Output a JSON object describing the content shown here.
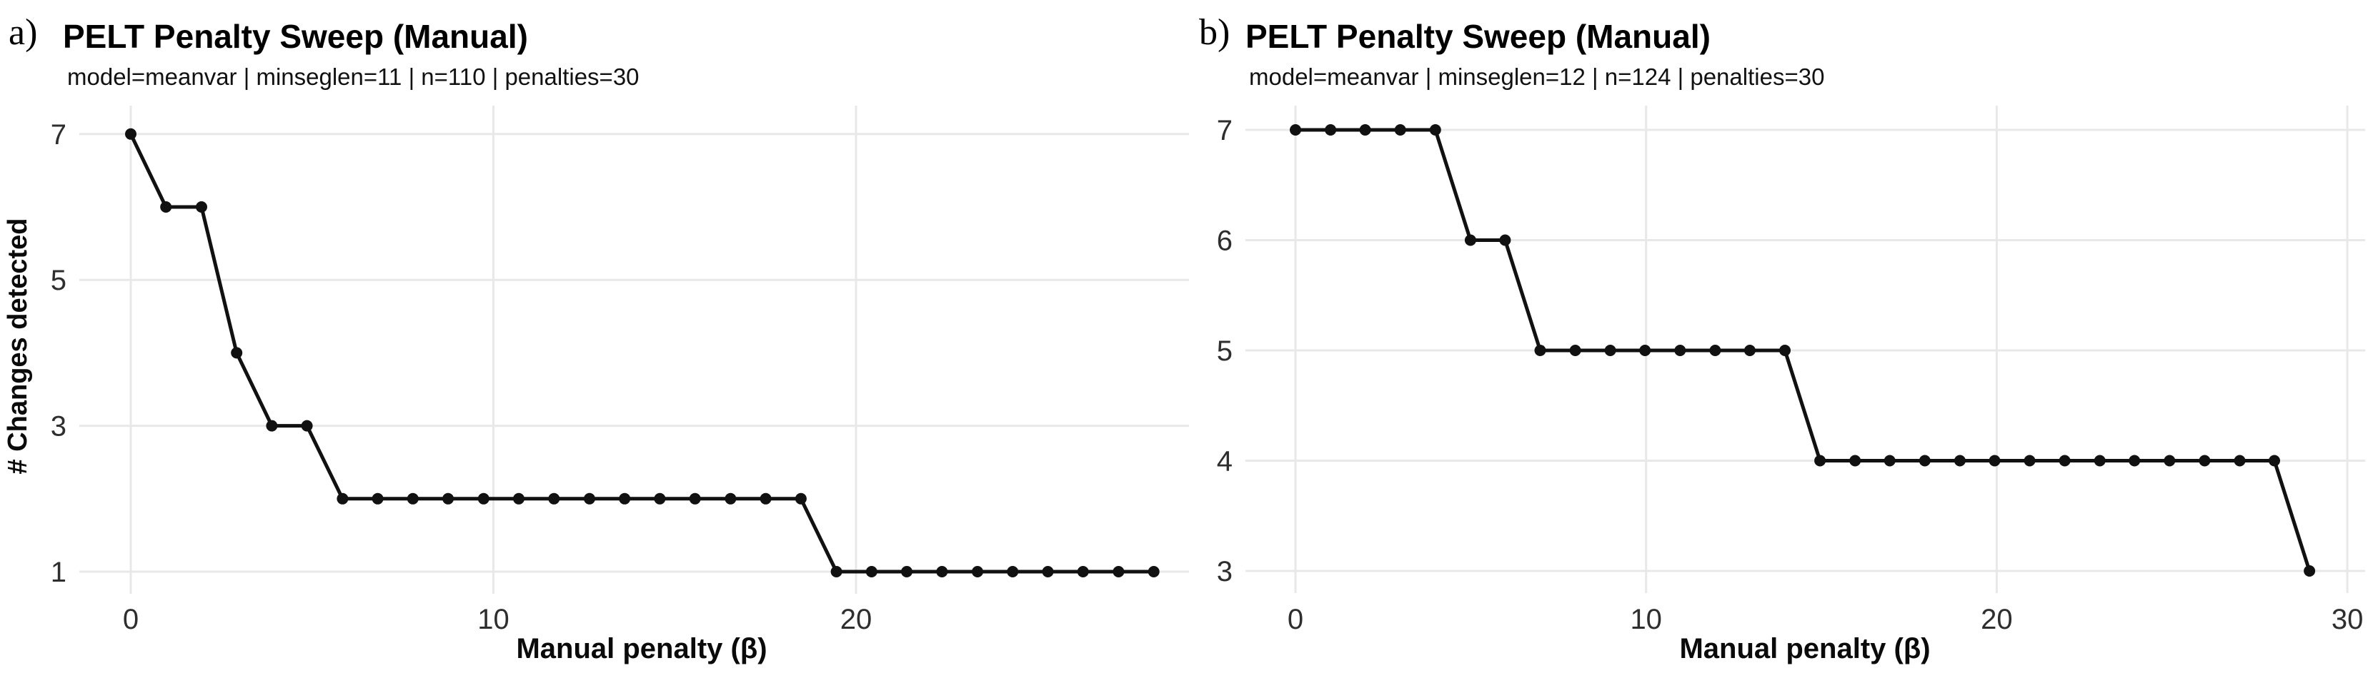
{
  "colors": {
    "background": "#ffffff",
    "gridline": "#e8e8e8",
    "series": "#111111",
    "marker": "#111111",
    "tick_label": "#2e2e2e",
    "axis_title": "#0a0a0a",
    "title": "#000000"
  },
  "chart_data": [
    {
      "type": "line",
      "panel_label": "a)",
      "title": "PELT Penalty Sweep (Manual)",
      "subtitle": "model=meanvar | minseglen=11 | n=110 | penalties=30",
      "xlabel": "Manual penalty (β)",
      "ylabel": "# Changes detected",
      "x": [
        0,
        0.97,
        1.95,
        2.92,
        3.89,
        4.86,
        5.84,
        6.81,
        7.78,
        8.75,
        9.73,
        10.7,
        11.67,
        12.65,
        13.62,
        14.59,
        15.56,
        16.54,
        17.51,
        18.48,
        19.46,
        20.43,
        21.4,
        22.37,
        23.35,
        24.32,
        25.29,
        26.26,
        27.24,
        28.21
      ],
      "y": [
        7,
        6,
        6,
        4,
        3,
        3,
        2,
        2,
        2,
        2,
        2,
        2,
        2,
        2,
        2,
        2,
        2,
        2,
        2,
        2,
        1,
        1,
        1,
        1,
        1,
        1,
        1,
        1,
        1,
        1
      ],
      "xlim": [
        0,
        28.21
      ],
      "ylim": [
        1,
        7
      ],
      "xticks": [
        0,
        10,
        20
      ],
      "yticks": [
        7,
        5,
        3,
        1
      ],
      "grid": true,
      "legend": "none",
      "marker": "circle"
    },
    {
      "type": "line",
      "panel_label": "b)",
      "title": "PELT Penalty Sweep (Manual)",
      "subtitle": "model=meanvar | minseglen=12 | n=124 | penalties=30",
      "xlabel": "Manual penalty (β)",
      "ylabel": "",
      "x": [
        0,
        1.0,
        1.99,
        2.99,
        3.99,
        4.99,
        5.98,
        6.98,
        7.98,
        8.98,
        9.97,
        10.97,
        11.97,
        12.96,
        13.96,
        14.96,
        15.96,
        16.95,
        17.95,
        18.95,
        19.94,
        20.94,
        21.94,
        22.94,
        23.93,
        24.93,
        25.93,
        26.93,
        27.92,
        28.92
      ],
      "y": [
        7,
        7,
        7,
        7,
        7,
        6,
        6,
        5,
        5,
        5,
        5,
        5,
        5,
        5,
        5,
        4,
        4,
        4,
        4,
        4,
        4,
        4,
        4,
        4,
        4,
        4,
        4,
        4,
        4,
        3
      ],
      "xlim": [
        0,
        28.92
      ],
      "ylim": [
        3,
        7
      ],
      "xticks": [
        0,
        10,
        20,
        30
      ],
      "yticks": [
        7,
        6,
        5,
        4,
        3
      ],
      "grid": true,
      "legend": "none",
      "marker": "circle"
    }
  ]
}
